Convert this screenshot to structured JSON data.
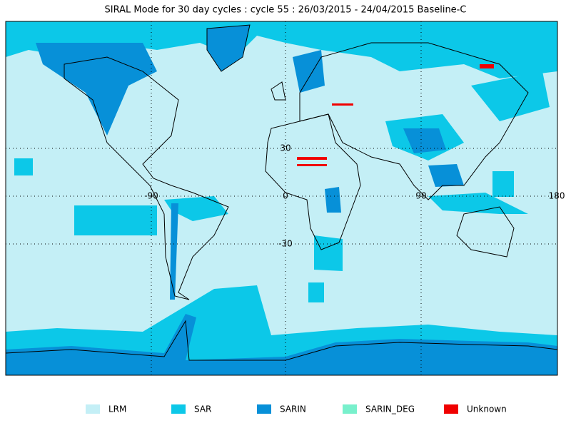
{
  "header": {
    "title": "SIRAL Mode for 30 day cycles : cycle 55 : 26/03/2015 - 24/04/2015 Baseline-C"
  },
  "map": {
    "lon_labels": [
      "-90",
      "0",
      "90",
      "180"
    ],
    "lat_labels": [
      "30",
      "-30"
    ]
  },
  "legend": {
    "items": [
      {
        "label": "LRM",
        "color": "#c4eff6"
      },
      {
        "label": "SAR",
        "color": "#0cc8e8"
      },
      {
        "label": "SARIN",
        "color": "#0790d8"
      },
      {
        "label": "SARIN_DEG",
        "color": "#78f0cc"
      },
      {
        "label": "Unknown",
        "color": "#f00000"
      }
    ]
  }
}
